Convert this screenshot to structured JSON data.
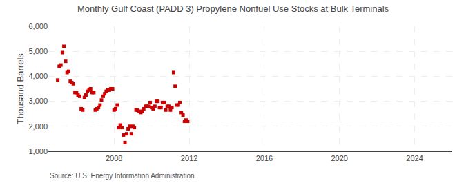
{
  "chart_data": {
    "type": "scatter",
    "title": "Monthly Gulf Coast (PADD 3) Propylene Nonfuel Use Stocks at Bulk Terminals",
    "ylabel": "Thousand Barrels",
    "annotations": [
      "Source: U.S. Energy Information Administration"
    ],
    "color": "#cc0000",
    "marker": "square",
    "grid": true,
    "xlim": [
      2004.5,
      2026.0
    ],
    "ylim": [
      1000,
      6000
    ],
    "xticks": [
      2008,
      2012,
      2016,
      2020,
      2024
    ],
    "yticks": [
      {
        "value": 1000,
        "label": "1,000"
      },
      {
        "value": 2000,
        "label": "2,000"
      },
      {
        "value": 3000,
        "label": "3,000"
      },
      {
        "value": 4000,
        "label": "4,000"
      },
      {
        "value": 5000,
        "label": "5,000"
      },
      {
        "value": 6000,
        "label": "6,000"
      }
    ],
    "x": [
      2005.0,
      2005.08,
      2005.17,
      2005.25,
      2005.33,
      2005.42,
      2005.5,
      2005.58,
      2005.67,
      2005.75,
      2005.83,
      2005.92,
      2006.0,
      2006.08,
      2006.17,
      2006.25,
      2006.33,
      2006.42,
      2006.5,
      2006.58,
      2006.67,
      2006.75,
      2006.83,
      2006.92,
      2007.0,
      2007.08,
      2007.17,
      2007.25,
      2007.33,
      2007.42,
      2007.5,
      2007.58,
      2007.67,
      2007.75,
      2007.83,
      2007.92,
      2008.0,
      2008.08,
      2008.17,
      2008.25,
      2008.33,
      2008.42,
      2008.5,
      2008.58,
      2008.67,
      2008.75,
      2008.83,
      2008.92,
      2009.0,
      2009.08,
      2009.17,
      2009.25,
      2009.33,
      2009.42,
      2009.5,
      2009.58,
      2009.67,
      2009.75,
      2009.83,
      2009.92,
      2010.0,
      2010.08,
      2010.17,
      2010.25,
      2010.33,
      2010.42,
      2010.5,
      2010.58,
      2010.67,
      2010.75,
      2010.83,
      2010.92,
      2011.0,
      2011.08,
      2011.17,
      2011.25,
      2011.33,
      2011.42,
      2011.5,
      2011.58,
      2011.67,
      2011.75,
      2011.83,
      2011.92
    ],
    "values": [
      3850,
      4400,
      4450,
      4950,
      5200,
      4600,
      4150,
      4200,
      3800,
      3750,
      3700,
      3350,
      3350,
      3250,
      3200,
      2700,
      2650,
      3150,
      3250,
      3400,
      3450,
      3500,
      3350,
      3350,
      2650,
      2700,
      2750,
      2850,
      3050,
      3200,
      3300,
      3400,
      3450,
      3450,
      3500,
      3500,
      2650,
      2700,
      2850,
      1950,
      2050,
      1950,
      1650,
      1350,
      1700,
      1900,
      2000,
      1700,
      2000,
      1950,
      2650,
      2650,
      2600,
      2550,
      2600,
      2700,
      2800,
      2800,
      2800,
      2950,
      2750,
      2700,
      2800,
      3000,
      3000,
      2750,
      2750,
      2950,
      2950,
      2650,
      2800,
      2800,
      2650,
      2750,
      4150,
      3600,
      2850,
      2850,
      2950,
      2550,
      2450,
      2200,
      2250,
      2200
    ]
  }
}
